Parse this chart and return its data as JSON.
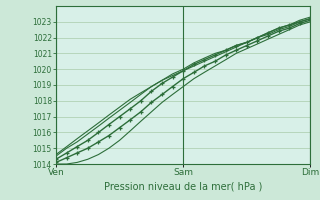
{
  "xlabel": "Pression niveau de la mer( hPa )",
  "bg_color": "#cce8d8",
  "plot_bg_color": "#d8f0e8",
  "grid_color": "#aaccaa",
  "line_color": "#2d6e3a",
  "ylim": [
    1014,
    1024
  ],
  "yticks": [
    1014,
    1015,
    1016,
    1017,
    1018,
    1019,
    1020,
    1021,
    1022,
    1023
  ],
  "xtick_labels": [
    "Ven",
    "Sam",
    "Dim"
  ],
  "xtick_positions": [
    0,
    0.5,
    1.0
  ],
  "series": [
    {
      "x": [
        0.0,
        0.042,
        0.083,
        0.125,
        0.167,
        0.208,
        0.25,
        0.292,
        0.333,
        0.375,
        0.417,
        0.458,
        0.5,
        0.542,
        0.583,
        0.625,
        0.667,
        0.708,
        0.75,
        0.792,
        0.833,
        0.875,
        0.917,
        0.958,
        1.0
      ],
      "y": [
        1014.3,
        1014.7,
        1015.1,
        1015.5,
        1016.0,
        1016.5,
        1017.0,
        1017.5,
        1018.0,
        1018.6,
        1019.1,
        1019.5,
        1019.9,
        1020.3,
        1020.6,
        1020.9,
        1021.2,
        1021.5,
        1021.7,
        1022.0,
        1022.3,
        1022.6,
        1022.8,
        1023.0,
        1023.2
      ],
      "marker": true,
      "lw": 1.0
    },
    {
      "x": [
        0.0,
        0.042,
        0.083,
        0.125,
        0.167,
        0.208,
        0.25,
        0.292,
        0.333,
        0.375,
        0.417,
        0.458,
        0.5,
        0.542,
        0.583,
        0.625,
        0.667,
        0.708,
        0.75,
        0.792,
        0.833,
        0.875,
        0.917,
        0.958,
        1.0
      ],
      "y": [
        1014.1,
        1014.4,
        1014.7,
        1015.0,
        1015.4,
        1015.8,
        1016.3,
        1016.8,
        1017.3,
        1017.9,
        1018.4,
        1018.9,
        1019.4,
        1019.8,
        1020.2,
        1020.5,
        1020.9,
        1021.2,
        1021.5,
        1021.8,
        1022.1,
        1022.4,
        1022.6,
        1022.9,
        1023.1
      ],
      "marker": true,
      "lw": 1.0
    },
    {
      "x": [
        0.0,
        0.042,
        0.083,
        0.125,
        0.167,
        0.208,
        0.25,
        0.292,
        0.333,
        0.375,
        0.417,
        0.458,
        0.5,
        0.542,
        0.583,
        0.625,
        0.667,
        0.708,
        0.75,
        0.792,
        0.833,
        0.875,
        0.917,
        0.958,
        1.0
      ],
      "y": [
        1014.5,
        1015.0,
        1015.4,
        1015.9,
        1016.4,
        1016.9,
        1017.4,
        1017.9,
        1018.4,
        1018.9,
        1019.3,
        1019.7,
        1020.0,
        1020.4,
        1020.7,
        1021.0,
        1021.2,
        1021.5,
        1021.7,
        1022.0,
        1022.2,
        1022.5,
        1022.7,
        1023.0,
        1023.2
      ],
      "marker": false,
      "lw": 0.8
    },
    {
      "x": [
        0.0,
        0.042,
        0.083,
        0.125,
        0.167,
        0.208,
        0.25,
        0.292,
        0.333,
        0.375,
        0.417,
        0.458,
        0.5,
        0.542,
        0.583,
        0.625,
        0.667,
        0.708,
        0.75,
        0.792,
        0.833,
        0.875,
        0.917,
        0.958,
        1.0
      ],
      "y": [
        1014.0,
        1014.0,
        1014.1,
        1014.3,
        1014.6,
        1015.0,
        1015.5,
        1016.1,
        1016.7,
        1017.3,
        1017.9,
        1018.4,
        1018.9,
        1019.4,
        1019.8,
        1020.2,
        1020.6,
        1021.0,
        1021.3,
        1021.6,
        1021.9,
        1022.2,
        1022.5,
        1022.8,
        1023.0
      ],
      "marker": false,
      "lw": 0.8
    },
    {
      "x": [
        0.0,
        0.042,
        0.083,
        0.125,
        0.167,
        0.208,
        0.25,
        0.292,
        0.333,
        0.375,
        0.417,
        0.458,
        0.5,
        0.542,
        0.583,
        0.625,
        0.667,
        0.708,
        0.75,
        0.792,
        0.833,
        0.875,
        0.917,
        0.958,
        1.0
      ],
      "y": [
        1014.6,
        1015.1,
        1015.6,
        1016.1,
        1016.6,
        1017.1,
        1017.6,
        1018.1,
        1018.5,
        1018.9,
        1019.3,
        1019.6,
        1019.9,
        1020.2,
        1020.5,
        1020.8,
        1021.1,
        1021.4,
        1021.7,
        1022.0,
        1022.3,
        1022.6,
        1022.8,
        1023.1,
        1023.3
      ],
      "marker": false,
      "lw": 0.8
    }
  ]
}
